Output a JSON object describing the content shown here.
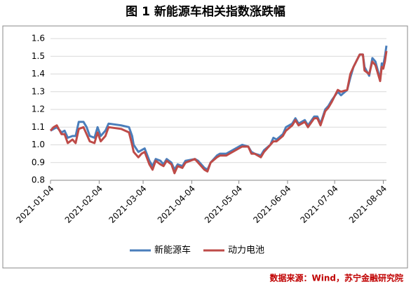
{
  "chart_data": {
    "type": "line",
    "title": "图 1  新能源车相关指数涨跌幅",
    "source": "数据来源：Wind，苏宁金融研究院",
    "x": [
      "2021-01-04",
      "2021-01-06",
      "2021-01-08",
      "2021-01-11",
      "2021-01-13",
      "2021-01-15",
      "2021-01-18",
      "2021-01-20",
      "2021-01-22",
      "2021-01-25",
      "2021-01-27",
      "2021-01-29",
      "2021-02-01",
      "2021-02-03",
      "2021-02-05",
      "2021-02-08",
      "2021-02-10",
      "2021-02-18",
      "2021-02-23",
      "2021-02-25",
      "2021-02-26",
      "2021-03-01",
      "2021-03-03",
      "2021-03-05",
      "2021-03-08",
      "2021-03-10",
      "2021-03-12",
      "2021-03-15",
      "2021-03-17",
      "2021-03-19",
      "2021-03-22",
      "2021-03-24",
      "2021-03-26",
      "2021-03-29",
      "2021-03-31",
      "2021-04-06",
      "2021-04-08",
      "2021-04-12",
      "2021-04-14",
      "2021-04-16",
      "2021-04-20",
      "2021-04-22",
      "2021-04-26",
      "2021-04-28",
      "2021-05-06",
      "2021-05-10",
      "2021-05-12",
      "2021-05-14",
      "2021-05-18",
      "2021-05-20",
      "2021-05-24",
      "2021-05-26",
      "2021-05-28",
      "2021-06-01",
      "2021-06-03",
      "2021-06-07",
      "2021-06-09",
      "2021-06-11",
      "2021-06-15",
      "2021-06-17",
      "2021-06-21",
      "2021-06-23",
      "2021-06-25",
      "2021-06-28",
      "2021-06-30",
      "2021-07-02",
      "2021-07-06",
      "2021-07-08",
      "2021-07-12",
      "2021-07-14",
      "2021-07-16",
      "2021-07-20",
      "2021-07-22",
      "2021-07-23",
      "2021-07-26",
      "2021-07-28",
      "2021-07-30",
      "2021-08-02",
      "2021-08-03",
      "2021-08-04",
      "2021-08-05",
      "2021-08-06"
    ],
    "series": [
      {
        "name": "新能源车",
        "color": "#4a7ebb",
        "values": [
          1.08,
          1.09,
          1.1,
          1.07,
          1.08,
          1.04,
          1.05,
          1.05,
          1.13,
          1.13,
          1.1,
          1.05,
          1.04,
          1.1,
          1.05,
          1.08,
          1.12,
          1.11,
          1.1,
          1.05,
          1.0,
          0.96,
          0.97,
          0.98,
          0.91,
          0.88,
          0.92,
          0.91,
          0.89,
          0.92,
          0.9,
          0.86,
          0.89,
          0.88,
          0.91,
          0.92,
          0.91,
          0.87,
          0.86,
          0.9,
          0.94,
          0.95,
          0.95,
          0.96,
          1.0,
          0.99,
          0.96,
          0.95,
          0.94,
          0.97,
          1.0,
          1.04,
          1.03,
          1.06,
          1.1,
          1.12,
          1.15,
          1.12,
          1.14,
          1.11,
          1.16,
          1.16,
          1.12,
          1.2,
          1.22,
          1.25,
          1.3,
          1.28,
          1.31,
          1.38,
          1.44,
          1.51,
          1.51,
          1.44,
          1.39,
          1.49,
          1.47,
          1.37,
          1.46,
          1.45,
          1.5,
          1.56
        ]
      },
      {
        "name": "动力电池",
        "color": "#be4b48",
        "values": [
          1.08,
          1.1,
          1.11,
          1.06,
          1.06,
          1.01,
          1.03,
          1.01,
          1.09,
          1.1,
          1.06,
          1.02,
          1.01,
          1.07,
          1.02,
          1.05,
          1.1,
          1.09,
          1.07,
          1.0,
          0.96,
          0.93,
          0.95,
          0.96,
          0.89,
          0.86,
          0.91,
          0.89,
          0.88,
          0.91,
          0.89,
          0.84,
          0.88,
          0.87,
          0.9,
          0.92,
          0.9,
          0.86,
          0.85,
          0.9,
          0.93,
          0.94,
          0.94,
          0.95,
          0.99,
          0.99,
          0.95,
          0.95,
          0.93,
          0.96,
          1.0,
          1.02,
          1.02,
          1.05,
          1.08,
          1.11,
          1.14,
          1.11,
          1.13,
          1.1,
          1.15,
          1.15,
          1.11,
          1.19,
          1.21,
          1.24,
          1.31,
          1.3,
          1.31,
          1.4,
          1.44,
          1.51,
          1.51,
          1.42,
          1.4,
          1.47,
          1.45,
          1.36,
          1.44,
          1.43,
          1.47,
          1.53
        ]
      }
    ],
    "xlim": [
      "2021-01-04",
      "2021-08-06"
    ],
    "xticks": [
      "2021-01-04",
      "2021-02-04",
      "2021-03-04",
      "2021-04-04",
      "2021-05-04",
      "2021-06-04",
      "2021-07-04",
      "2021-08-04"
    ],
    "ylim": [
      0.8,
      1.6
    ],
    "yticks": [
      0.8,
      0.9,
      {
        "value": 1,
        "label": "1.0"
      },
      1.1,
      1.2,
      1.3,
      1.4,
      1.5,
      1.6
    ],
    "grid": true
  }
}
